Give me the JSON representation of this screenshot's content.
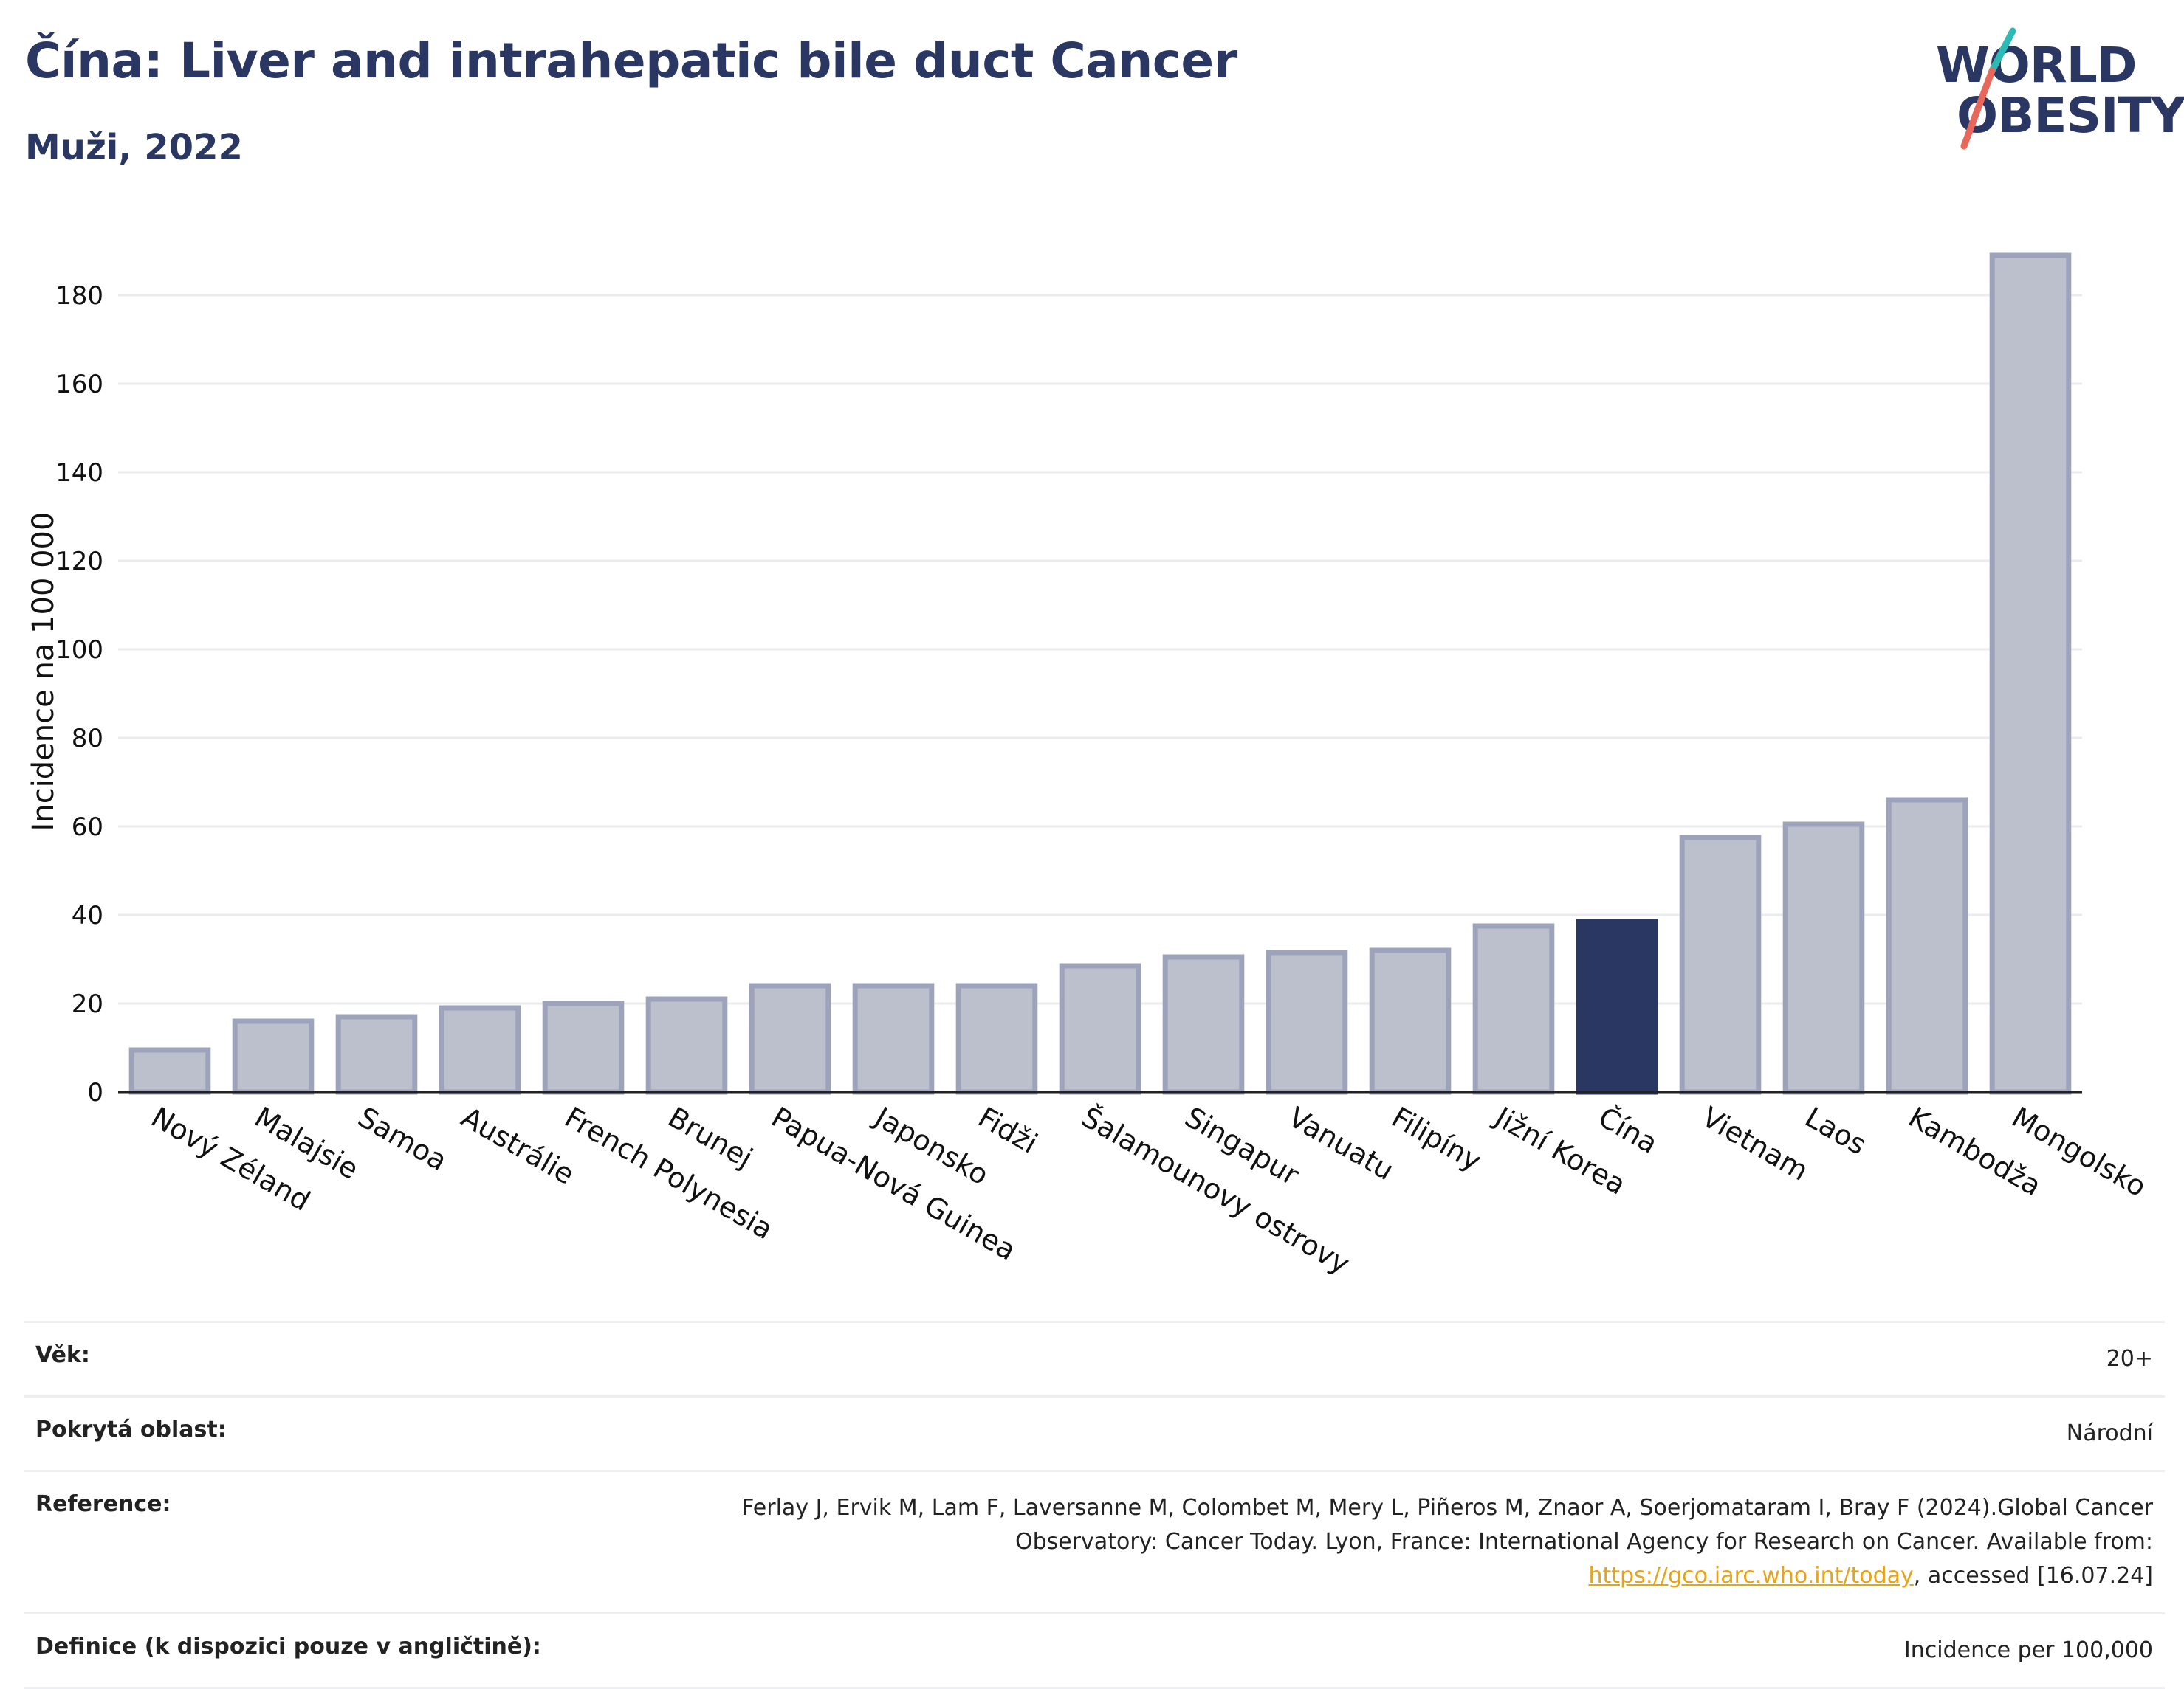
{
  "header": {
    "title": "Čína: Liver and intrahepatic bile duct Cancer",
    "subtitle": "Muži, 2022"
  },
  "logo": {
    "line1": "WORLD",
    "line2": "OBESITY",
    "accent_colors": [
      "#2bbbb4",
      "#e8675a"
    ]
  },
  "colors": {
    "bar": "#bcc0cd",
    "bar_edge": "#9da3ba",
    "highlight": "#2b3763",
    "grid": "#e9ebef"
  },
  "chart_data": {
    "type": "bar",
    "title": "Čína: Liver and intrahepatic bile duct Cancer",
    "subtitle": "Muži, 2022",
    "ylabel": "Incidence na 100 000",
    "xlabel": "",
    "ylim": [
      0,
      190
    ],
    "yticks": [
      0,
      20,
      40,
      60,
      80,
      100,
      120,
      140,
      160,
      180
    ],
    "grid": true,
    "highlight": "Čína",
    "categories": [
      "Nový Zéland",
      "Malajsie",
      "Samoa",
      "Austrálie",
      "French Polynesia",
      "Brunej",
      "Papua-Nová Guinea",
      "Japonsko",
      "Fidži",
      "Šalamounovy ostrovy",
      "Singapur",
      "Vanuatu",
      "Filipíny",
      "Jižní Korea",
      "Čína",
      "Vietnam",
      "Laos",
      "Kambodža",
      "Mongolsko"
    ],
    "values": [
      9.5,
      16.0,
      17.0,
      19.0,
      20.0,
      21.0,
      24.0,
      24.0,
      24.0,
      28.5,
      30.5,
      31.5,
      32.0,
      37.5,
      38.5,
      57.5,
      60.5,
      66.0,
      189.0
    ]
  },
  "info": {
    "age_label": "Věk:",
    "age_value": "20+",
    "area_label": "Pokrytá oblast:",
    "area_value": "Národní",
    "ref_label": "Reference:",
    "ref_text": "Ferlay J, Ervik M, Lam F, Laversanne M, Colombet M, Mery L, Piñeros M, Znaor A, Soerjomataram I, Bray F (2024).Global Cancer Observatory: Cancer Today. Lyon, France: International Agency for Research on Cancer. Available from: ",
    "ref_link": "https://gco.iarc.who.int/today",
    "ref_tail": ", accessed [16.07.24]",
    "def_label": "Definice (k dispozici pouze v angličtině):",
    "def_value": "Incidence per 100,000"
  }
}
